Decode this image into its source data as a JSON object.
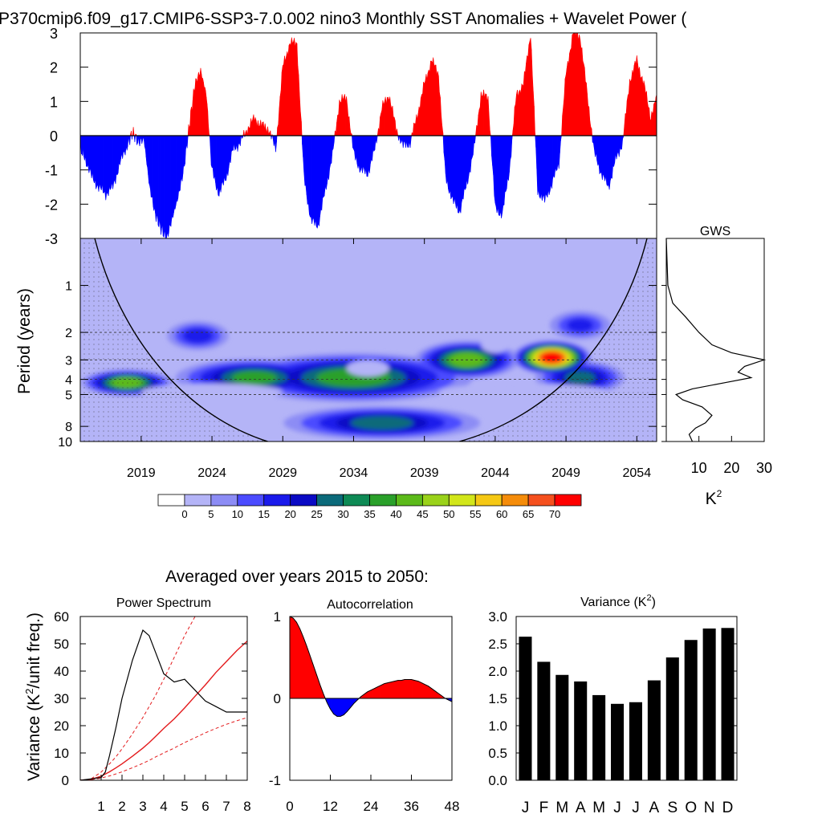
{
  "figure": {
    "title": "P370cmip6.f09_g17.CMIP6-SSP3-7.0.002 nino3 Monthly SST Anomalies + Wavelet Power (",
    "subtitle": "Averaged over years 2015 to 2050:"
  },
  "colors": {
    "positive": "#ff0000",
    "negative": "#0000ff",
    "fit_line": "#e31a1c",
    "bar": "#000000"
  },
  "chart_data": [
    {
      "type": "area",
      "name": "sst_anomaly_timeseries",
      "ylim": [
        -3,
        3
      ],
      "yticks": [
        "3",
        "2",
        "1",
        "0",
        "-1",
        "-2",
        "-3"
      ],
      "x_range_years": [
        2014.7,
        2055.4
      ],
      "x": [
        2014.7,
        2015,
        2015.5,
        2016,
        2016.5,
        2017,
        2017.5,
        2018,
        2018.4,
        2018.8,
        2019.2,
        2019.6,
        2020,
        2020.4,
        2020.8,
        2021.2,
        2021.6,
        2022,
        2022.4,
        2022.8,
        2023.2,
        2023.6,
        2024,
        2024.5,
        2025,
        2025.5,
        2026,
        2026.5,
        2027,
        2027.5,
        2028,
        2028.5,
        2029,
        2029.5,
        2030,
        2030.5,
        2031,
        2031.5,
        2032,
        2032.5,
        2033,
        2033.5,
        2034,
        2034.5,
        2035,
        2035.5,
        2036,
        2036.5,
        2037,
        2037.5,
        2038,
        2038.5,
        2039,
        2039.5,
        2040,
        2040.5,
        2041,
        2041.5,
        2042,
        2042.5,
        2043,
        2043.5,
        2044,
        2044.5,
        2045,
        2045.5,
        2046,
        2046.5,
        2047,
        2047.5,
        2048,
        2048.5,
        2049,
        2049.5,
        2050,
        2050.5,
        2051,
        2051.5,
        2052,
        2052.5,
        2053,
        2053.5,
        2054,
        2054.5,
        2055,
        2055.4
      ],
      "values": [
        -0.4,
        -0.6,
        -1.2,
        -1.5,
        -1.7,
        -1.5,
        -0.8,
        -0.3,
        0.1,
        -0.2,
        -0.1,
        -1.5,
        -2.3,
        -2.7,
        -3.0,
        -2.4,
        -1.8,
        -1.0,
        0.3,
        1.5,
        1.9,
        1.2,
        -1.0,
        -1.7,
        -1.2,
        -0.4,
        -0.2,
        0.2,
        0.5,
        0.3,
        0.2,
        -0.4,
        2.0,
        2.7,
        2.7,
        -1.2,
        -2.5,
        -2.6,
        -1.6,
        -0.6,
        1.0,
        1.1,
        -0.5,
        -1.0,
        -1.1,
        -0.4,
        0.8,
        1.2,
        0.2,
        -0.3,
        -0.2,
        0.6,
        1.5,
        2.2,
        1.8,
        -1.2,
        -1.9,
        -2.2,
        -1.4,
        -0.4,
        1.2,
        1.1,
        -2.1,
        -2.3,
        -1.0,
        1.2,
        1.5,
        3.0,
        -1.6,
        -1.9,
        -1.4,
        -0.8,
        1.8,
        3.0,
        2.9,
        1.2,
        -0.5,
        -1.1,
        -1.5,
        -0.7,
        -0.2,
        1.6,
        2.2,
        1.5,
        0.5,
        1.2
      ]
    },
    {
      "type": "heatmap",
      "name": "wavelet_power",
      "ylabel": "Period (years)",
      "yticks": [
        "1",
        "2",
        "3",
        "4",
        "5",
        "8",
        "10"
      ],
      "xticks": [
        "2019",
        "2024",
        "2029",
        "2034",
        "2039",
        "2044",
        "2049",
        "2054"
      ],
      "colorbar_ticks": [
        "0",
        "5",
        "10",
        "15",
        "20",
        "25",
        "30",
        "35",
        "40",
        "45",
        "50",
        "55",
        "60",
        "65",
        "70"
      ],
      "colorbar_colors": [
        "#ffffff",
        "#b4b4f7",
        "#8c8cf5",
        "#4b4bff",
        "#1a1aeb",
        "#0a0ac4",
        "#0b6a7a",
        "#0e8a55",
        "#2aa02a",
        "#5cba1a",
        "#9ad21a",
        "#d2e61a",
        "#f5c814",
        "#f58c0a",
        "#f5501e",
        "#ff0000"
      ],
      "blobs": [
        {
          "year": 2034,
          "period": 3.9,
          "w_years": 17,
          "h": 0.11,
          "power": 42
        },
        {
          "year": 2027,
          "period": 3.9,
          "w_years": 11,
          "h": 0.08,
          "power": 40
        },
        {
          "year": 2018,
          "period": 4.2,
          "w_years": 6,
          "h": 0.05,
          "power": 46
        },
        {
          "year": 2050,
          "period": 3.9,
          "w_years": 6,
          "h": 0.07,
          "power": 35
        },
        {
          "year": 2048,
          "period": 2.9,
          "w_years": 5,
          "h": 0.07,
          "power": 70
        },
        {
          "year": 2042,
          "period": 3.0,
          "w_years": 7,
          "h": 0.08,
          "power": 46
        },
        {
          "year": 2036,
          "period": 7.6,
          "w_years": 14,
          "h": 0.07,
          "power": 36
        },
        {
          "year": 2023,
          "period": 2.1,
          "w_years": 4,
          "h": 0.06,
          "power": 26
        },
        {
          "year": 2050,
          "period": 1.8,
          "w_years": 4,
          "h": 0.06,
          "power": 24
        }
      ],
      "holes": [
        {
          "year": 2035,
          "period": 3.4,
          "w_years": 3,
          "h": 0.04
        },
        {
          "year": 2044,
          "period": 2.4,
          "w_years": 2,
          "h": 0.04
        },
        {
          "year": 2024,
          "period": 4.8,
          "w_years": 10,
          "h": 0.04
        },
        {
          "year": 2046,
          "period": 4.8,
          "w_years": 12,
          "h": 0.04
        }
      ]
    },
    {
      "type": "line",
      "name": "global_wavelet_spectrum",
      "title": "GWS",
      "xlabel": "K",
      "xlabel_superscript": "2",
      "xticks": [
        "10",
        "20",
        "30"
      ],
      "xlim": [
        0,
        30
      ],
      "period": [
        0.5,
        1.0,
        1.3,
        1.6,
        2.0,
        2.4,
        2.7,
        3.0,
        3.3,
        3.6,
        3.9,
        4.2,
        4.6,
        5.0,
        5.4,
        6.0,
        6.8,
        7.6,
        8.2,
        9.0,
        10.0
      ],
      "power": [
        0,
        0.5,
        2,
        6,
        10,
        14,
        20,
        30,
        24,
        22,
        26,
        18,
        8,
        3,
        5,
        11,
        14,
        12,
        9,
        7,
        8
      ]
    },
    {
      "type": "line",
      "name": "power_spectrum",
      "title": "Power Spectrum",
      "ylabel": "Variance (K",
      "ylabel_superscript": "2",
      "ylabel_tail": "/unit freq.)",
      "ylim": [
        0,
        60
      ],
      "xlim": [
        0,
        8
      ],
      "yticks": [
        "60",
        "50",
        "40",
        "30",
        "20",
        "10",
        "0"
      ],
      "xticks": [
        "1",
        "2",
        "3",
        "4",
        "5",
        "6",
        "7",
        "8"
      ],
      "x": [
        0,
        0.5,
        1,
        1.2,
        1.4,
        1.7,
        2,
        2.5,
        3,
        3.3,
        3.6,
        4,
        4.5,
        5,
        5.5,
        6,
        6.5,
        7,
        7.5,
        8
      ],
      "spectrum": [
        0,
        0.5,
        1,
        3,
        9,
        19,
        30,
        44,
        55,
        53,
        47,
        39,
        36,
        37,
        33,
        29,
        27,
        25,
        25,
        25
      ],
      "red_noise": [
        0,
        0.3,
        1.5,
        2.3,
        3.1,
        4.5,
        6,
        8.8,
        11.8,
        13.8,
        16,
        19,
        22.5,
        26.5,
        30.8,
        35,
        39.5,
        43.5,
        47.5,
        51
      ],
      "upper_ci": [
        0,
        0.4,
        3.0,
        4.5,
        6.0,
        8.5,
        11.5,
        17,
        23,
        27,
        31,
        37,
        45,
        53,
        60,
        68,
        76,
        84,
        92,
        100
      ],
      "lower_ci": [
        0,
        0.2,
        0.8,
        1.2,
        1.6,
        2.3,
        3.1,
        4.6,
        6.2,
        7.3,
        8.5,
        10,
        11.8,
        13.8,
        15.6,
        17.4,
        19,
        20.5,
        21.8,
        23
      ]
    },
    {
      "type": "area",
      "name": "autocorrelation",
      "title": "Autocorrelation",
      "ylim": [
        -1,
        1
      ],
      "xlim": [
        0,
        48
      ],
      "yticks": [
        "1",
        "0",
        "-1"
      ],
      "xticks": [
        "0",
        "12",
        "24",
        "36",
        "48"
      ],
      "x": [
        0,
        1,
        2,
        3,
        4,
        5,
        6,
        7,
        8,
        9,
        10,
        11,
        12,
        13,
        14,
        15,
        16,
        17,
        18,
        19,
        20,
        21,
        22,
        23,
        24,
        25,
        26,
        27,
        28,
        29,
        30,
        31,
        32,
        33,
        34,
        35,
        36,
        37,
        38,
        39,
        40,
        41,
        42,
        43,
        44,
        45,
        46,
        47,
        48
      ],
      "values": [
        1,
        0.98,
        0.93,
        0.85,
        0.75,
        0.64,
        0.52,
        0.4,
        0.28,
        0.16,
        0.05,
        -0.05,
        -0.13,
        -0.19,
        -0.22,
        -0.22,
        -0.2,
        -0.16,
        -0.11,
        -0.06,
        -0.02,
        0.02,
        0.05,
        0.08,
        0.1,
        0.12,
        0.14,
        0.16,
        0.18,
        0.19,
        0.2,
        0.21,
        0.22,
        0.22,
        0.23,
        0.23,
        0.23,
        0.22,
        0.21,
        0.19,
        0.17,
        0.15,
        0.12,
        0.09,
        0.06,
        0.03,
        0,
        -0.02,
        -0.04
      ]
    },
    {
      "type": "bar",
      "name": "monthly_variance",
      "title": "Variance (K",
      "title_superscript": "2",
      "title_tail": ")",
      "ylim": [
        0,
        3
      ],
      "yticks": [
        "3.0",
        "2.5",
        "2.0",
        "1.5",
        "1.0",
        "0.5",
        "0.0"
      ],
      "categories": [
        "J",
        "F",
        "M",
        "A",
        "M",
        "J",
        "J",
        "A",
        "S",
        "O",
        "N",
        "D"
      ],
      "values": [
        2.63,
        2.17,
        1.93,
        1.81,
        1.56,
        1.4,
        1.43,
        1.83,
        2.25,
        2.57,
        2.78,
        2.79
      ]
    }
  ]
}
